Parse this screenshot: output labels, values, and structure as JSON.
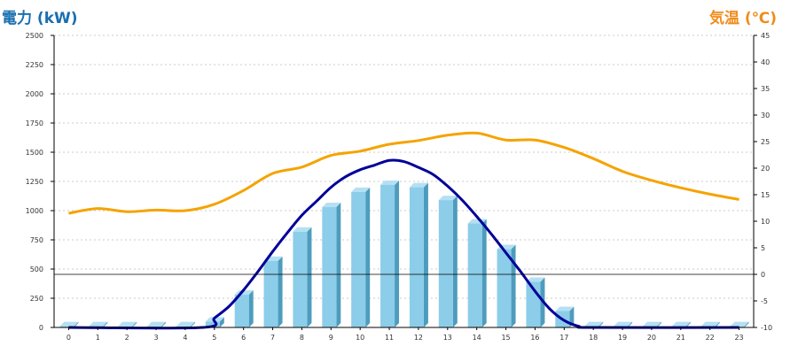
{
  "chart_data": {
    "type": "bar+line",
    "colors": {
      "bar": "#8ccde9",
      "bar_side": "#4e9cbd",
      "bar_top": "#b5e0f3",
      "power_line": "#000099",
      "temp_line": "#f5a300",
      "left_title": "#1a6fb0",
      "right_title": "#f08c1a",
      "grid": "#bbbbbb",
      "axis": "#000000"
    },
    "left_axis": {
      "title": "電力 (kW)",
      "min": 0,
      "max": 2500,
      "ticks": [
        "0",
        "250",
        "500",
        "750",
        "1000",
        "1250",
        "1500",
        "1750",
        "2000",
        "2250",
        "2500"
      ]
    },
    "right_axis": {
      "title": "気温 (℃)",
      "min": -10,
      "max": 45,
      "ticks": [
        "-10",
        "-5",
        "0",
        "5",
        "10",
        "15",
        "20",
        "25",
        "30",
        "35",
        "40",
        "45"
      ]
    },
    "categories": [
      "0",
      "1",
      "2",
      "3",
      "4",
      "5",
      "6",
      "7",
      "8",
      "9",
      "10",
      "11",
      "12",
      "13",
      "14",
      "15",
      "16",
      "17",
      "18",
      "19",
      "20",
      "21",
      "22",
      "23"
    ],
    "bars_kw": [
      10,
      10,
      10,
      10,
      10,
      50,
      280,
      570,
      820,
      1030,
      1160,
      1220,
      1200,
      1090,
      890,
      670,
      390,
      140,
      10,
      10,
      10,
      10,
      10,
      10
    ],
    "power_curve": {
      "x": [
        0,
        4.6,
        5,
        5.5,
        6,
        6.5,
        7,
        7.5,
        8,
        8.5,
        9,
        9.5,
        10,
        10.5,
        11,
        11.5,
        12,
        12.5,
        13,
        13.5,
        14,
        14.5,
        15,
        15.5,
        16,
        16.5,
        17,
        17.5,
        18,
        23
      ],
      "kw": [
        0,
        0,
        80,
        180,
        320,
        480,
        650,
        810,
        960,
        1080,
        1200,
        1290,
        1350,
        1390,
        1430,
        1420,
        1370,
        1310,
        1210,
        1090,
        950,
        800,
        640,
        480,
        310,
        160,
        60,
        10,
        0,
        0
      ]
    },
    "temperature_c": [
      11.5,
      12.4,
      11.8,
      12.1,
      12.0,
      13.2,
      15.8,
      19.0,
      20.2,
      22.4,
      23.2,
      24.5,
      25.2,
      26.2,
      26.6,
      25.3,
      25.3,
      23.9,
      21.8,
      19.4,
      17.7,
      16.3,
      15.1,
      14.1
    ],
    "reference_line_c": 0
  }
}
